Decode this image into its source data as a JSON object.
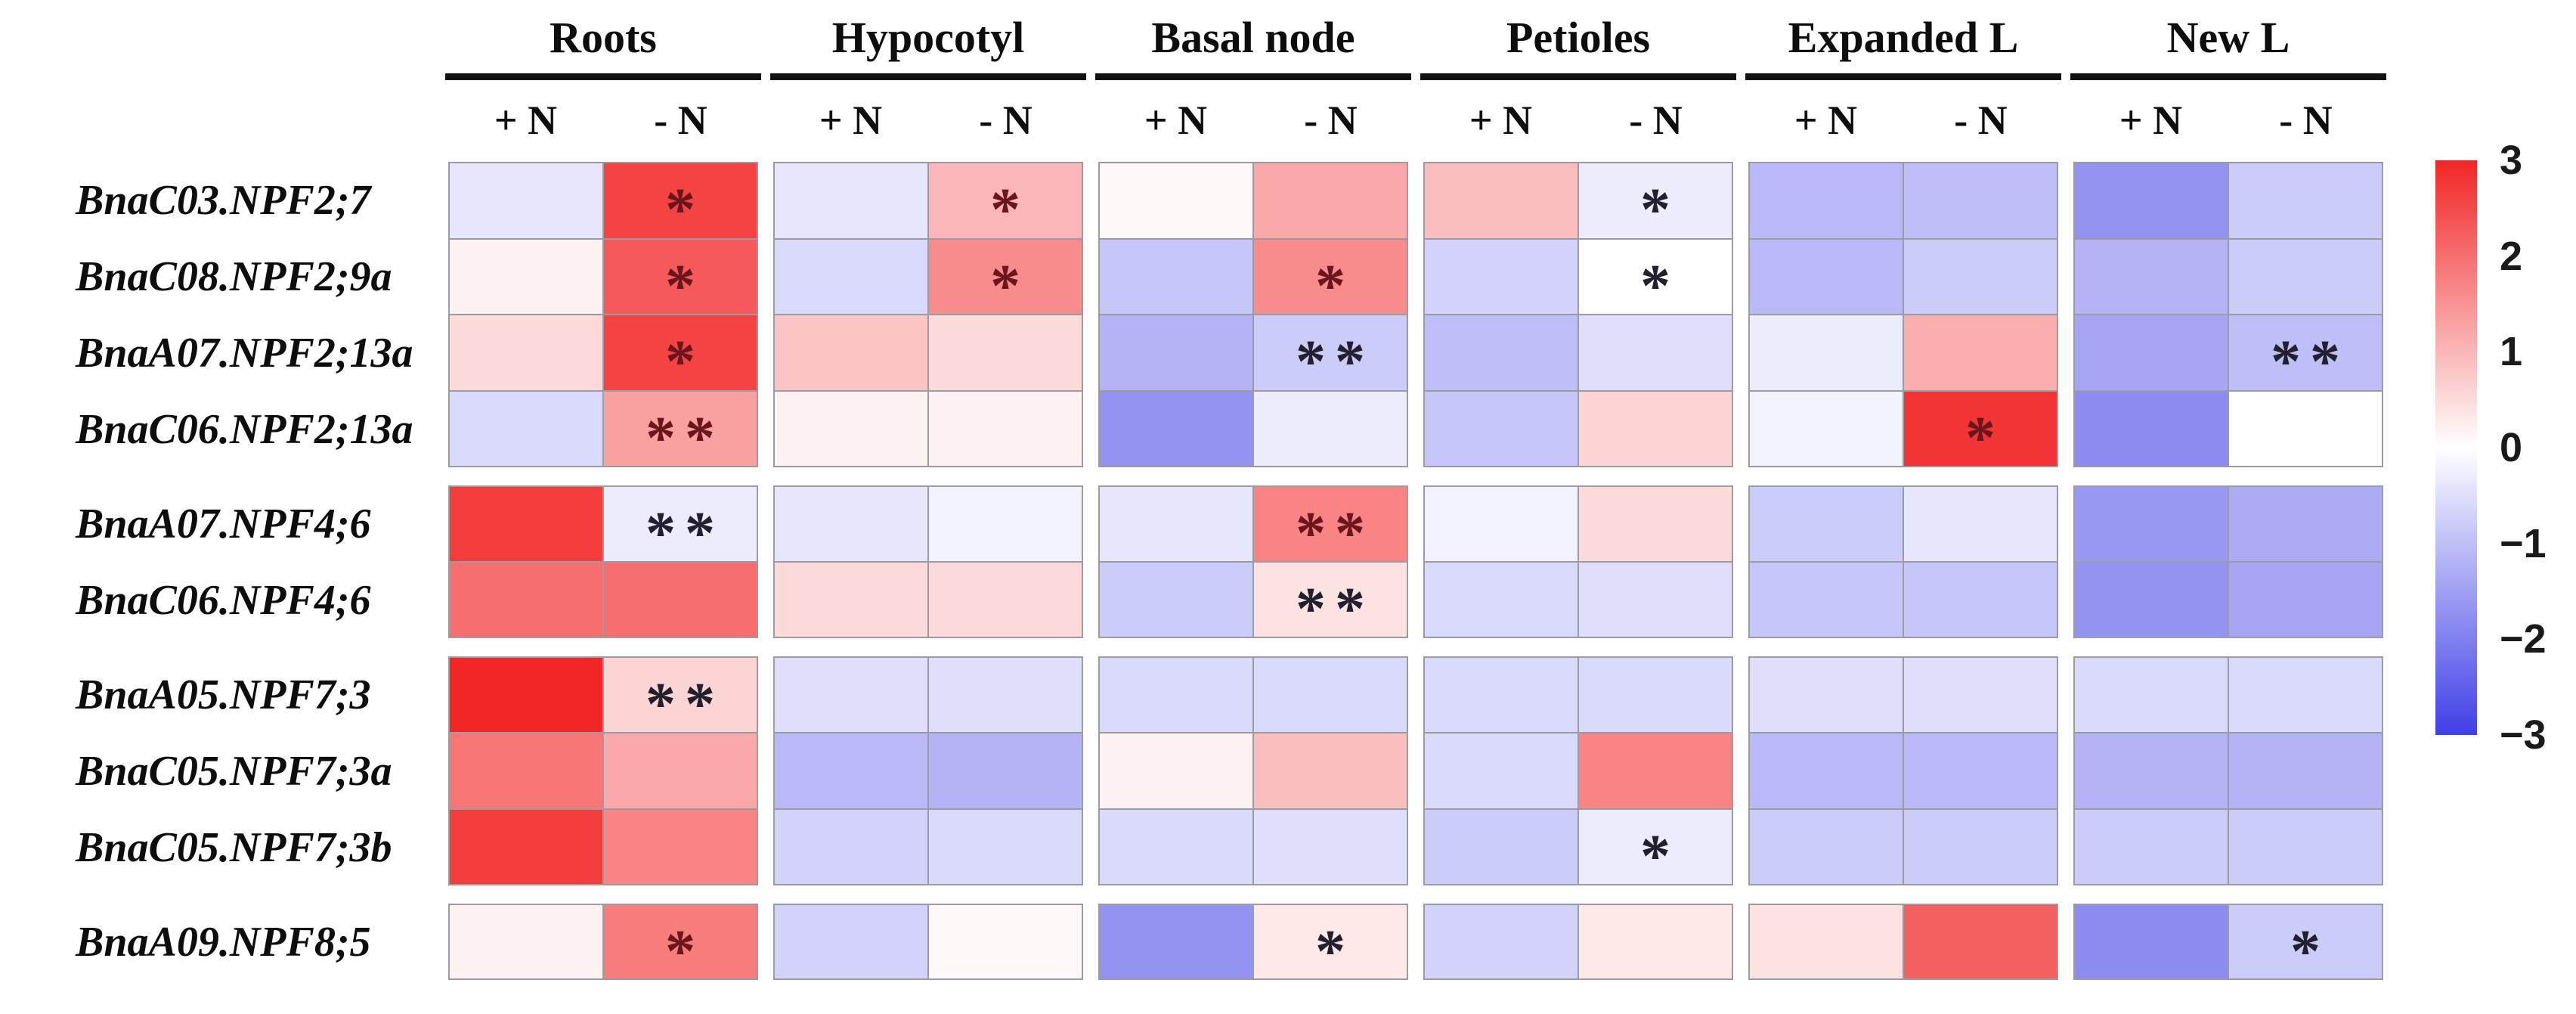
{
  "figure": {
    "background": "#ffffff"
  },
  "header": {
    "tissues": [
      "Roots",
      "Hypocotyl",
      "Basal node",
      "Petioles",
      "Expanded L",
      "New L"
    ],
    "conditions": [
      "+ N",
      "- N"
    ]
  },
  "genes": [
    "BnaC03.NPF2;7",
    "BnaC08.NPF2;9a",
    "BnaA07.NPF2;13a",
    "BnaC06.NPF2;13a",
    "BnaA07.NPF4;6",
    "BnaC06.NPF4;6",
    "BnaA05.NPF7;3",
    "BnaC05.NPF7;3a",
    "BnaC05.NPF7;3b",
    "BnaA09.NPF8;5"
  ],
  "chart_data": {
    "type": "heatmap",
    "title": "",
    "rows": [
      "BnaC03.NPF2;7",
      "BnaC08.NPF2;9a",
      "BnaA07.NPF2;13a",
      "BnaC06.NPF2;13a",
      "BnaA07.NPF4;6",
      "BnaC06.NPF4;6",
      "BnaA05.NPF7;3",
      "BnaC05.NPF7;3a",
      "BnaC05.NPF7;3b",
      "BnaA09.NPF8;5"
    ],
    "row_groups": [
      4,
      2,
      3,
      1
    ],
    "columns": [
      "Roots +N",
      "Roots -N",
      "Hypocotyl +N",
      "Hypocotyl -N",
      "Basal node +N",
      "Basal node -N",
      "Petioles +N",
      "Petioles -N",
      "Expanded L +N",
      "Expanded L -N",
      "New L +N",
      "New L -N"
    ],
    "values": [
      [
        -0.4,
        2.6,
        -0.4,
        1.0,
        0.1,
        1.2,
        0.9,
        -0.3,
        -1.1,
        -1.0,
        -1.7,
        -0.8
      ],
      [
        0.2,
        2.3,
        -0.6,
        1.6,
        -0.9,
        1.6,
        -0.7,
        0.0,
        -1.1,
        -0.8,
        -1.2,
        -0.8
      ],
      [
        0.5,
        2.6,
        0.8,
        0.5,
        -1.2,
        -0.8,
        -1.0,
        -0.5,
        -0.3,
        1.1,
        -1.4,
        -1.0
      ],
      [
        -0.6,
        1.3,
        0.2,
        0.2,
        -1.7,
        -0.3,
        -0.9,
        0.6,
        -0.2,
        2.8,
        -1.8,
        0.0
      ],
      [
        2.7,
        -0.3,
        -0.4,
        -0.2,
        -0.4,
        1.7,
        -0.2,
        0.5,
        -0.8,
        -0.4,
        -1.6,
        -1.3
      ],
      [
        2.0,
        2.0,
        0.5,
        0.5,
        -0.8,
        0.4,
        -0.6,
        -0.5,
        -0.9,
        -0.9,
        -1.7,
        -1.4
      ],
      [
        3.0,
        0.6,
        -0.5,
        -0.5,
        -0.6,
        -0.6,
        -0.6,
        -0.6,
        -0.5,
        -0.5,
        -0.6,
        -0.6
      ],
      [
        1.9,
        1.2,
        -1.1,
        -1.2,
        0.2,
        0.9,
        -0.6,
        1.7,
        -1.1,
        -1.1,
        -1.2,
        -1.2
      ],
      [
        2.7,
        1.7,
        -0.7,
        -0.6,
        -0.6,
        -0.5,
        -0.8,
        -0.3,
        -0.8,
        -0.8,
        -0.8,
        -0.8
      ],
      [
        0.2,
        1.8,
        -0.7,
        0.1,
        -1.7,
        0.3,
        -0.7,
        0.3,
        0.4,
        2.2,
        -1.8,
        -0.8
      ]
    ],
    "significance": [
      [
        "",
        "*",
        "",
        "*",
        "",
        "",
        "",
        "*",
        "",
        "",
        "",
        ""
      ],
      [
        "",
        "*",
        "",
        "*",
        "",
        "*",
        "",
        "*",
        "",
        "",
        "",
        ""
      ],
      [
        "",
        "*",
        "",
        "",
        "",
        "**",
        "",
        "",
        "",
        "",
        "",
        "**"
      ],
      [
        "",
        "**",
        "",
        "",
        "",
        "",
        "",
        "",
        "",
        "*",
        "",
        ""
      ],
      [
        "",
        "**",
        "",
        "",
        "",
        "**",
        "",
        "",
        "",
        "",
        "",
        ""
      ],
      [
        "",
        "",
        "",
        "",
        "",
        "**",
        "",
        "",
        "",
        "",
        "",
        ""
      ],
      [
        "",
        "**",
        "",
        "",
        "",
        "",
        "",
        "",
        "",
        "",
        "",
        ""
      ],
      [
        "",
        "",
        "",
        "",
        "",
        "",
        "",
        "",
        "",
        "",
        "",
        ""
      ],
      [
        "",
        "",
        "",
        "",
        "",
        "",
        "",
        "*",
        "",
        "",
        "",
        ""
      ],
      [
        "",
        "*",
        "",
        "",
        "",
        "*",
        "",
        "",
        "",
        "",
        "",
        "*"
      ]
    ],
    "colorscale": {
      "domain": [
        -3,
        0,
        3
      ],
      "colors": [
        "#4040E8",
        "#FFFFFF",
        "#F22626"
      ]
    },
    "colorbar_ticks": [
      "3",
      "2",
      "1",
      "0",
      "−1",
      "−2",
      "−3"
    ],
    "legend_position": "right",
    "grid": false
  },
  "colors": {
    "cell_border": "#9b9ba3",
    "header_rule": "#111111",
    "text": "#0d0d0d",
    "significance_mark": "#22202e",
    "significance_mark_on_red": "#6b161c",
    "colorbar_top": "#F22626",
    "colorbar_mid": "#FFFFFF",
    "colorbar_bottom": "#4040E8"
  }
}
